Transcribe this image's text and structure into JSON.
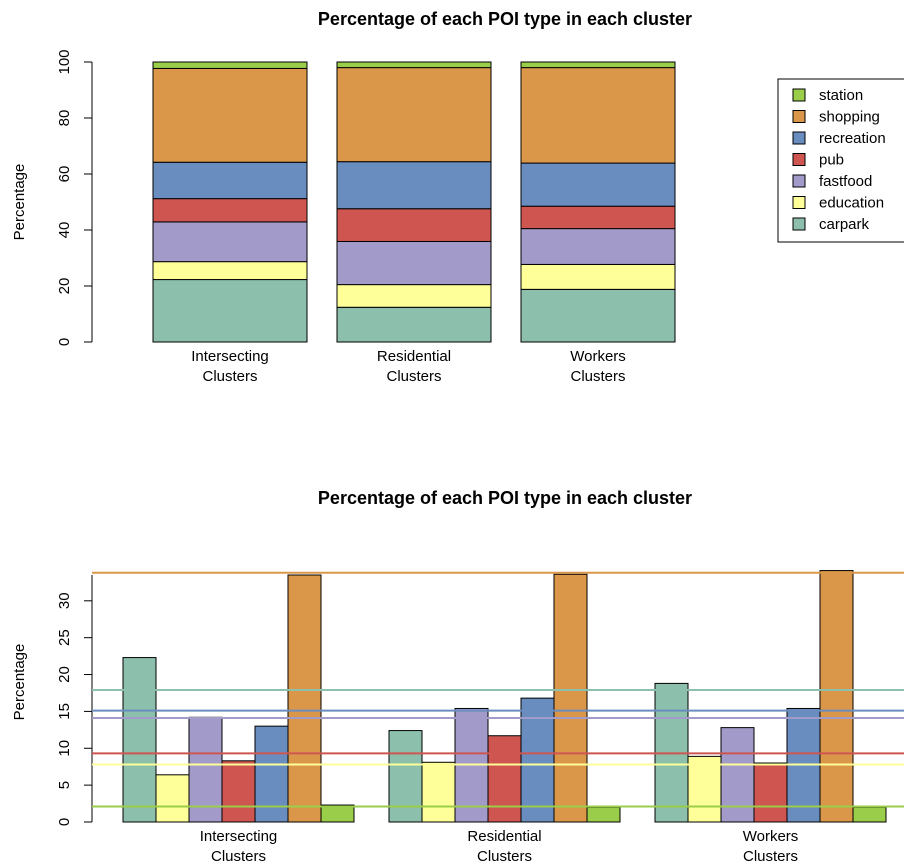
{
  "chart_data": [
    {
      "type": "bar",
      "stacked": true,
      "title": "Percentage of each POI type in each cluster",
      "xlabel": "",
      "ylabel": "Percentage",
      "ylim": [
        0,
        100
      ],
      "yticks": [
        "0",
        "20",
        "40",
        "60",
        "80",
        "100"
      ],
      "categories": [
        [
          "Intersecting",
          "Clusters"
        ],
        [
          "Residential",
          "Clusters"
        ],
        [
          "Workers",
          "Clusters"
        ]
      ],
      "series": [
        {
          "name": "carpark",
          "color": "#8CC0AD",
          "values": [
            22.3,
            12.4,
            18.8
          ]
        },
        {
          "name": "education",
          "color": "#FFFF99",
          "values": [
            6.4,
            8.1,
            8.9
          ]
        },
        {
          "name": "fastfood",
          "color": "#A29AC8",
          "values": [
            14.2,
            15.4,
            12.8
          ]
        },
        {
          "name": "pub",
          "color": "#CF5650",
          "values": [
            8.3,
            11.7,
            8.0
          ]
        },
        {
          "name": "recreation",
          "color": "#6A8DBF",
          "values": [
            13.0,
            16.8,
            15.4
          ]
        },
        {
          "name": "shopping",
          "color": "#DB9749",
          "values": [
            33.5,
            33.6,
            34.1
          ]
        },
        {
          "name": "station",
          "color": "#9ACD4A",
          "values": [
            2.3,
            2.0,
            2.0
          ]
        }
      ],
      "legend": {
        "position": "right",
        "order": [
          "station",
          "shopping",
          "recreation",
          "pub",
          "fastfood",
          "education",
          "carpark"
        ]
      },
      "grid": false
    },
    {
      "type": "bar",
      "stacked": false,
      "title": "Percentage of each POI type in each cluster",
      "xlabel": "",
      "ylabel": "Percentage",
      "ylim": [
        0,
        33.5
      ],
      "yticks": [
        "0",
        "5",
        "10",
        "15",
        "20",
        "25",
        "30"
      ],
      "categories": [
        [
          "Intersecting",
          "Clusters"
        ],
        [
          "Residential",
          "Clusters"
        ],
        [
          "Workers",
          "Clusters"
        ]
      ],
      "reference_lines": [
        {
          "color": "#DB9749",
          "value": 33.8
        },
        {
          "color": "#8CC0AD",
          "value": 17.9
        },
        {
          "color": "#6A8DBF",
          "value": 15.1
        },
        {
          "color": "#A29AC8",
          "value": 14.1
        },
        {
          "color": "#CF5650",
          "value": 9.3
        },
        {
          "color": "#FFFF99",
          "value": 7.8
        },
        {
          "color": "#9ACD4A",
          "value": 2.1
        }
      ],
      "grid": false
    }
  ]
}
